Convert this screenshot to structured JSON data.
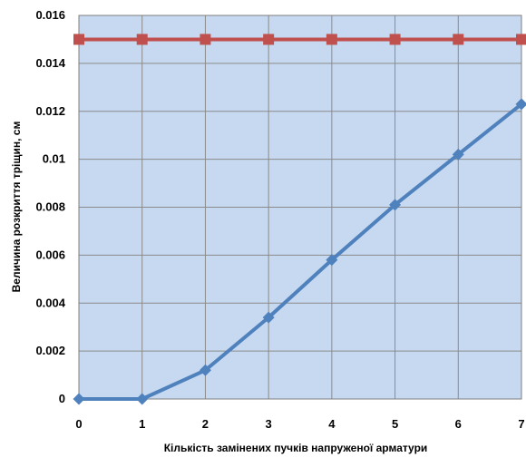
{
  "chart_data": {
    "type": "line",
    "title": "",
    "xlabel": "Кількість замінених пучків напруженої арматури",
    "ylabel": "Величина розкриття тріщин, см",
    "x": [
      0,
      1,
      2,
      3,
      4,
      5,
      6,
      7
    ],
    "x_tick_labels": [
      "0",
      "1",
      "2",
      "3",
      "4",
      "5",
      "6",
      "7"
    ],
    "y_tick_labels": [
      "0",
      "0.002",
      "0.004",
      "0.006",
      "0.008",
      "0.01",
      "0.012",
      "0.014",
      "0.016"
    ],
    "xlim": [
      0,
      7
    ],
    "ylim": [
      0,
      0.016
    ],
    "y_ticks": [
      0,
      0.002,
      0.004,
      0.006,
      0.008,
      0.01,
      0.012,
      0.014,
      0.016
    ],
    "grid": true,
    "legend": "none",
    "plot_background": "#c6d9f1",
    "series": [
      {
        "values": [
          0.015,
          0.015,
          0.015,
          0.015,
          0.015,
          0.015,
          0.015,
          0.015
        ],
        "color": "#c0504d",
        "marker": "square"
      },
      {
        "values": [
          0,
          0,
          0.0012,
          0.0034,
          0.0058,
          0.0081,
          0.0102,
          0.0123
        ],
        "color": "#4f81bd",
        "marker": "diamond"
      }
    ]
  }
}
